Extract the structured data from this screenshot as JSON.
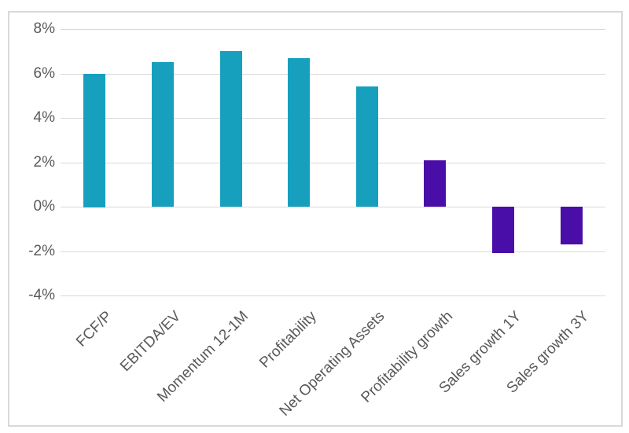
{
  "chart_data": {
    "type": "bar",
    "categories": [
      "FCF/P",
      "EBITDA/EV",
      "Momentum 12-1M",
      "Profitability",
      "Net Operating Assets",
      "Profitability growth",
      "Sales growth 1Y",
      "Sales growth 3Y"
    ],
    "values": [
      6.0,
      6.5,
      7.0,
      6.7,
      5.4,
      2.1,
      -2.1,
      -1.7
    ],
    "bar_colors": [
      "#17A0BE",
      "#17A0BE",
      "#17A0BE",
      "#17A0BE",
      "#17A0BE",
      "#4A0EA8",
      "#4A0EA8",
      "#4A0EA8"
    ],
    "title": "",
    "xlabel": "",
    "ylabel": "",
    "ylim": [
      -4,
      8
    ],
    "ytick_values": [
      8,
      6,
      4,
      2,
      0,
      -2,
      -4
    ],
    "ytick_labels": [
      "8%",
      "6%",
      "4%",
      "2%",
      "0%",
      "-2%",
      "-4%"
    ],
    "grid": true,
    "legend": false,
    "colors": {
      "teal_bar": "#17A0BE",
      "purple_bar": "#4A0EA8",
      "gridline": "#D9D9D9",
      "frame_border": "#D9D9D9",
      "axis_label": "#595959",
      "background": "#FFFFFF"
    }
  }
}
